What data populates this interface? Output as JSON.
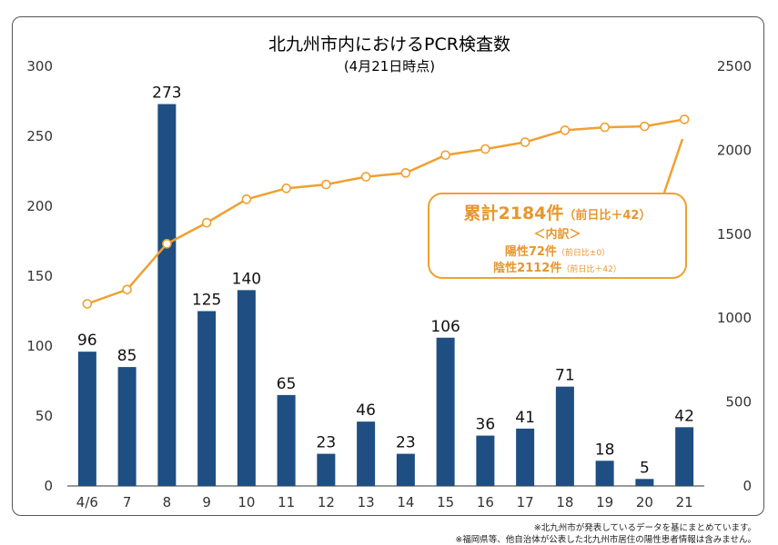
{
  "chart_data": {
    "type": "bar+line",
    "title": "北九州市内におけるPCR検査数",
    "subtitle": "(4月21日時点)",
    "categories": [
      "4/6",
      "7",
      "8",
      "9",
      "10",
      "11",
      "12",
      "13",
      "14",
      "15",
      "16",
      "17",
      "18",
      "19",
      "20",
      "21"
    ],
    "series": [
      {
        "type": "bar",
        "axis": "left",
        "values": [
          96,
          85,
          273,
          125,
          140,
          65,
          23,
          46,
          23,
          106,
          36,
          41,
          71,
          18,
          5,
          42
        ]
      },
      {
        "type": "line",
        "axis": "right",
        "values": [
          1085,
          1170,
          1443,
          1568,
          1708,
          1773,
          1796,
          1842,
          1865,
          1971,
          2007,
          2048,
          2119,
          2137,
          2142,
          2184
        ]
      }
    ],
    "left_axis": {
      "ylim": [
        0,
        300
      ],
      "ticks": [
        0,
        50,
        100,
        150,
        200,
        250,
        300
      ]
    },
    "right_axis": {
      "ylim": [
        0,
        2500
      ],
      "ticks": [
        0,
        500,
        1000,
        1500,
        2000,
        2500
      ]
    },
    "colors": {
      "bar": "#1F4E82",
      "line": "#F0A030",
      "callout_text": "#E8962B"
    },
    "grid": false,
    "callout": {
      "total_label": "累計2184件",
      "total_diff": "（前日比＋42）",
      "breakdown": "＜内訳＞",
      "positive": "陽性72件",
      "positive_diff": "（前日比±0）",
      "negative": "陰性2112件",
      "negative_diff": "（前日比＋42）"
    }
  },
  "notes": {
    "note1": "※北九州市が発表しているデータを基にまとめています。",
    "note2": "※福岡県等、他自治体が公表した北九州市居住の陽性患者情報は含みません。"
  }
}
